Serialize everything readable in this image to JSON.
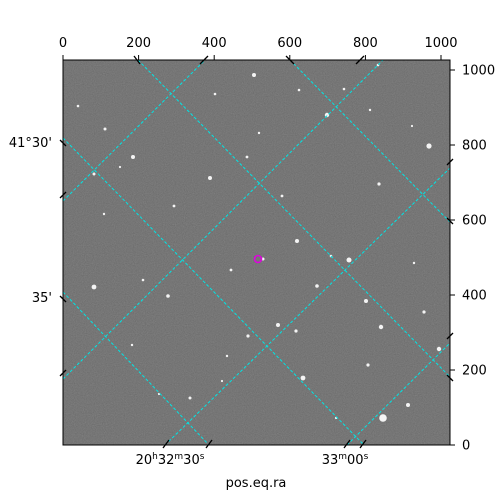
{
  "plot": {
    "pixel_axis_top": {
      "ticks": [
        "0",
        "200",
        "400",
        "600",
        "800",
        "1000"
      ],
      "values": [
        0,
        200,
        400,
        600,
        800,
        1000
      ]
    },
    "pixel_axis_right": {
      "ticks": [
        "0",
        "200",
        "400",
        "600",
        "800",
        "1000"
      ],
      "values": [
        0,
        200,
        400,
        600,
        800,
        1000
      ]
    },
    "ra_ticks": [
      {
        "h": "20",
        "m": "32",
        "s": "30",
        "kind": "full"
      },
      {
        "m": "33",
        "s": "00",
        "kind": "short"
      }
    ],
    "dec_ticks": [
      "41°30'",
      "35'"
    ],
    "xlabel": "pos.eq.ra",
    "grid_color": "#00e5e5",
    "marker_color": "#e000e0"
  }
}
